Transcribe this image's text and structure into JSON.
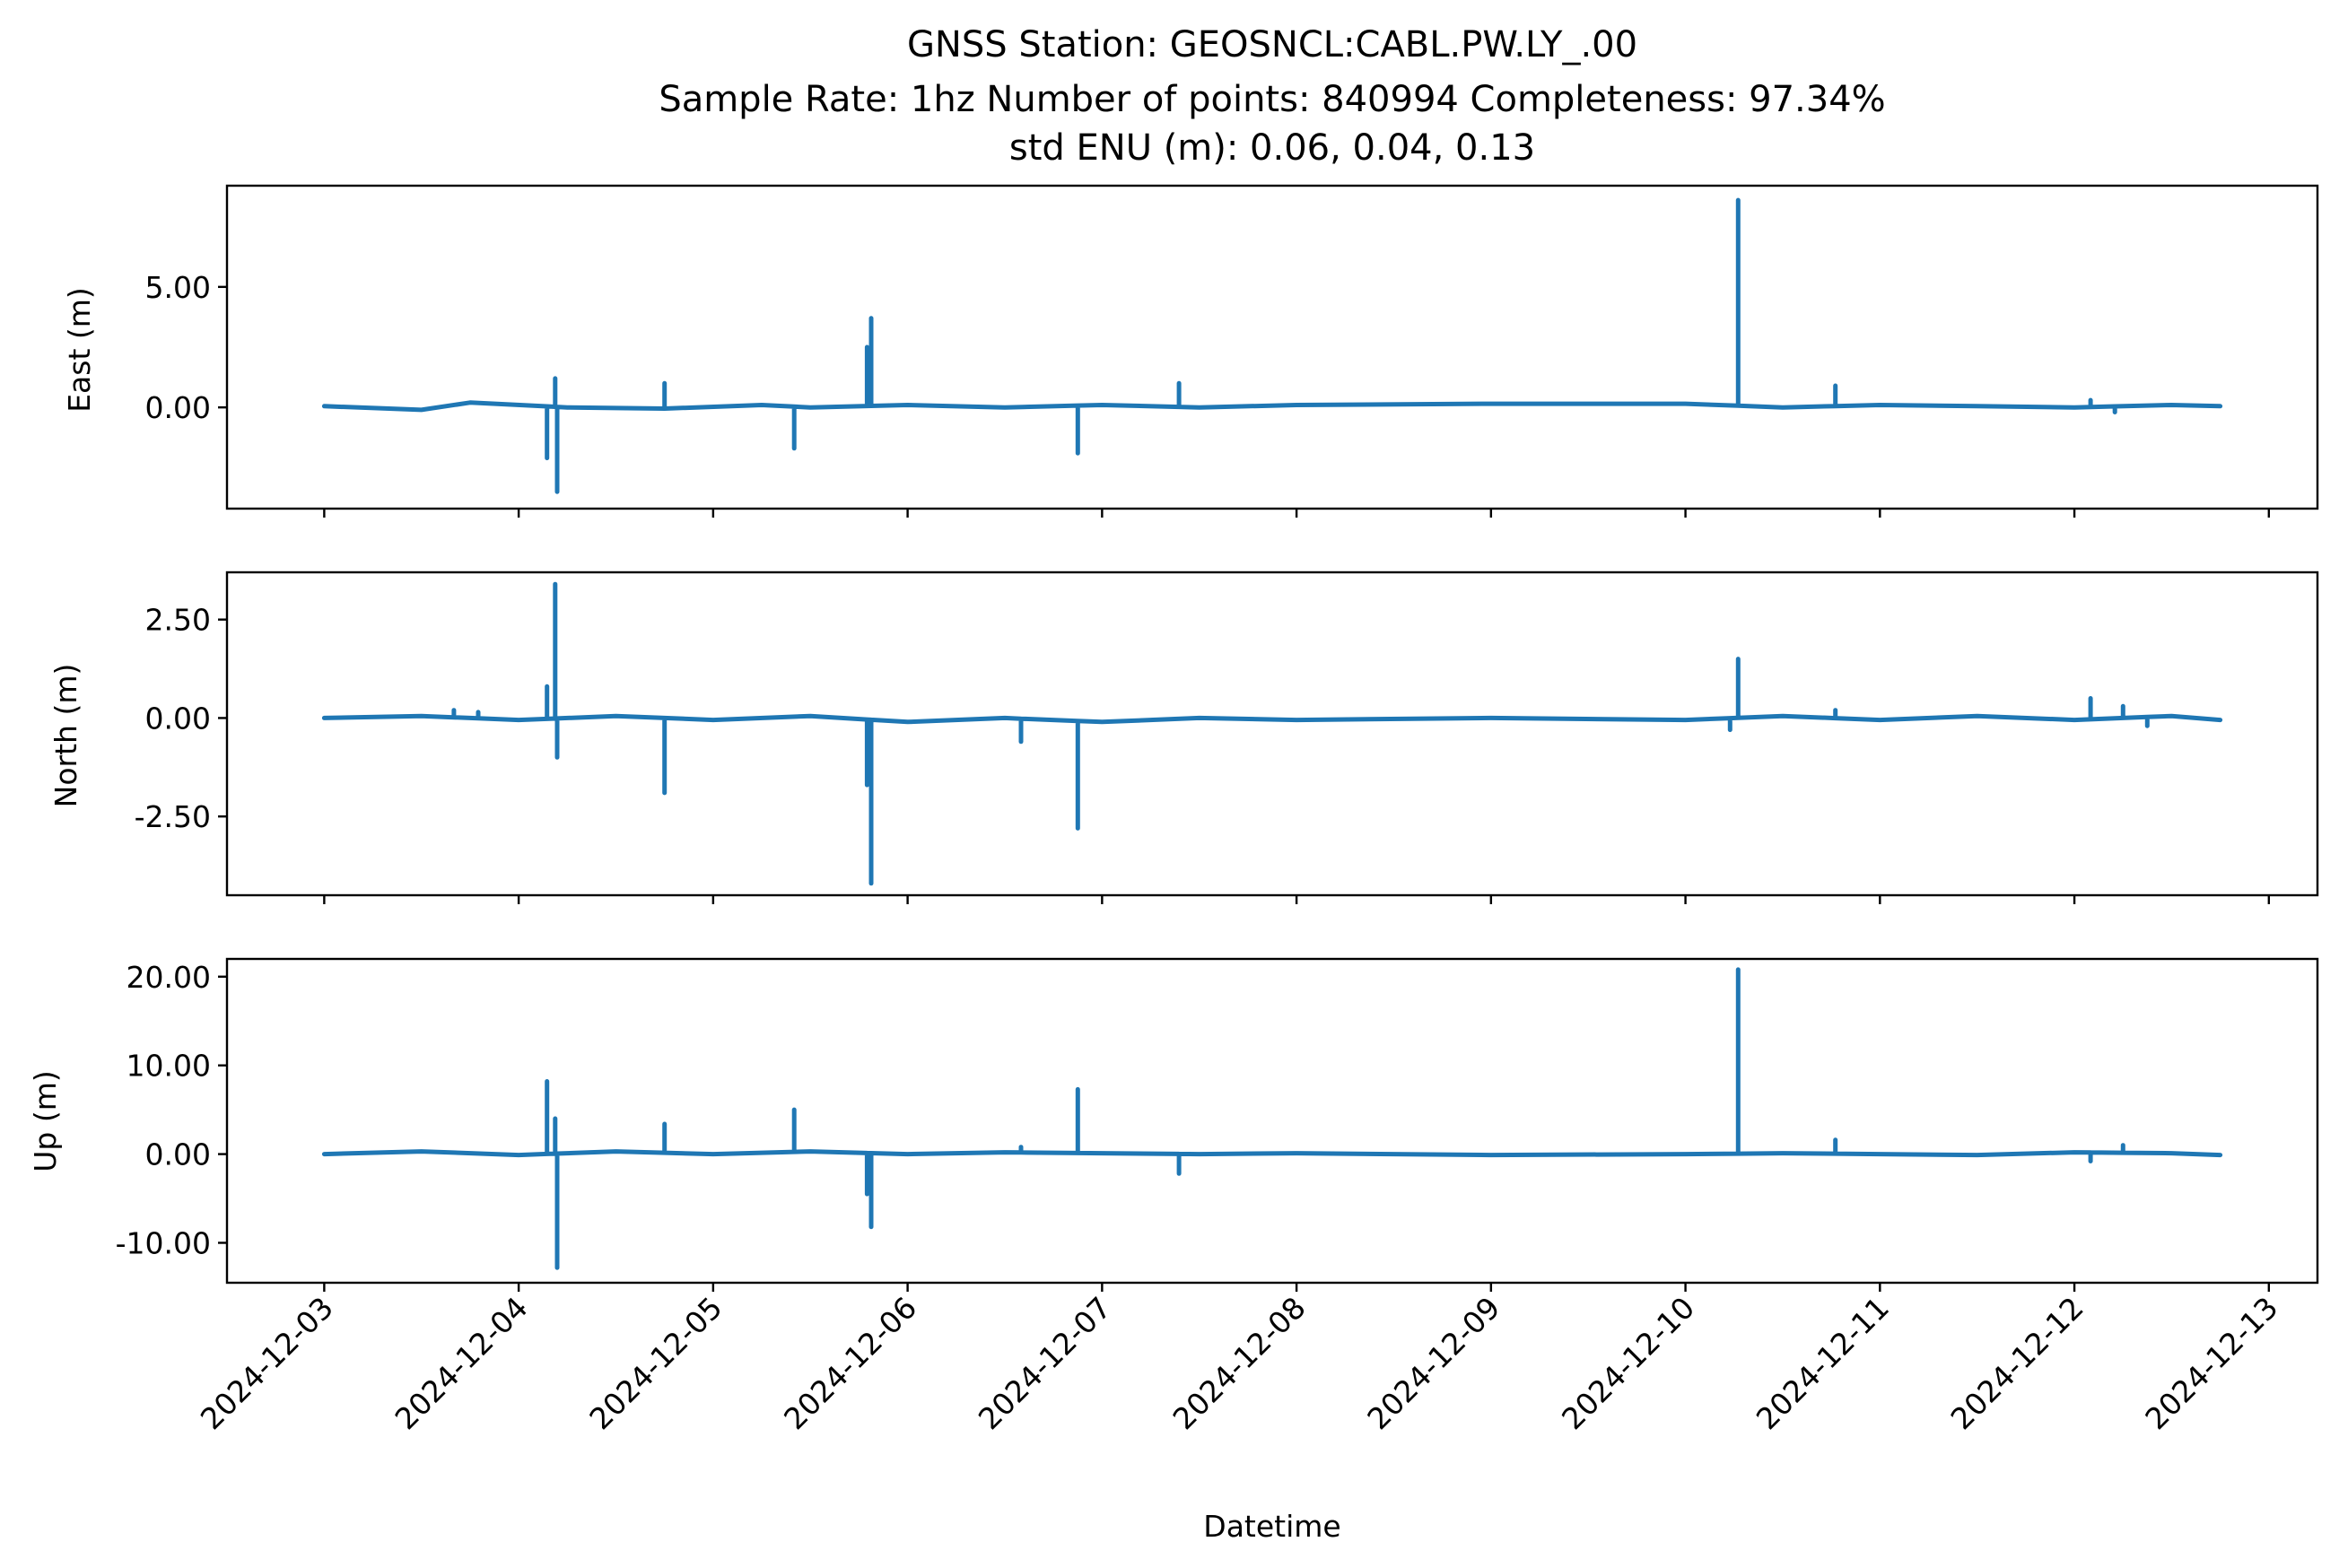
{
  "chart_data": {
    "type": "line",
    "title_lines": [
      "GNSS Station: GEOSNCL:CABL.PW.LY_.00",
      "Sample Rate: 1hz   Number of points: 840994    Completeness:  97.34%",
      "std ENU (m):  0.06, 0.04, 0.13"
    ],
    "xlabel": "Datetime",
    "x_ticks": [
      "2024-12-03",
      "2024-12-04",
      "2024-12-05",
      "2024-12-06",
      "2024-12-07",
      "2024-12-08",
      "2024-12-09",
      "2024-12-10",
      "2024-12-11",
      "2024-12-12",
      "2024-12-13"
    ],
    "xlim": [
      "2024-12-02 12:00",
      "2024-12-13 06:00"
    ],
    "data_range": [
      "2024-12-03 00:00",
      "2024-12-12 18:00"
    ],
    "line_color": "#1f77b4",
    "panels": [
      {
        "ylabel": "East (m)",
        "ylim": [
          -4.2,
          9.2
        ],
        "y_ticks": [
          0,
          5
        ],
        "y_tick_labels": [
          "0.00",
          "5.00"
        ],
        "series": {
          "baseline": [
            [
              "2024-12-03 00:00",
              0.05
            ],
            [
              "2024-12-03 12:00",
              -0.1
            ],
            [
              "2024-12-03 18:00",
              0.2
            ],
            [
              "2024-12-04 06:00",
              0.0
            ],
            [
              "2024-12-04 18:00",
              -0.05
            ],
            [
              "2024-12-05 06:00",
              0.1
            ],
            [
              "2024-12-05 12:00",
              0.0
            ],
            [
              "2024-12-06 00:00",
              0.1
            ],
            [
              "2024-12-06 12:00",
              0.0
            ],
            [
              "2024-12-07 00:00",
              0.1
            ],
            [
              "2024-12-07 12:00",
              0.0
            ],
            [
              "2024-12-08 00:00",
              0.1
            ],
            [
              "2024-12-09 00:00",
              0.15
            ],
            [
              "2024-12-10 00:00",
              0.15
            ],
            [
              "2024-12-10 12:00",
              0.0
            ],
            [
              "2024-12-11 00:00",
              0.1
            ],
            [
              "2024-12-11 12:00",
              0.05
            ],
            [
              "2024-12-12 00:00",
              0.0
            ],
            [
              "2024-12-12 12:00",
              0.1
            ],
            [
              "2024-12-12 18:00",
              0.05
            ]
          ],
          "spikes": [
            [
              "2024-12-04 03:30",
              -2.1
            ],
            [
              "2024-12-04 04:30",
              1.2
            ],
            [
              "2024-12-04 04:45",
              -3.5
            ],
            [
              "2024-12-04 18:00",
              1.0
            ],
            [
              "2024-12-05 10:00",
              -1.7
            ],
            [
              "2024-12-05 19:00",
              2.5
            ],
            [
              "2024-12-05 19:30",
              3.7
            ],
            [
              "2024-12-06 21:00",
              -1.9
            ],
            [
              "2024-12-07 09:30",
              1.0
            ],
            [
              "2024-12-10 06:30",
              8.6
            ],
            [
              "2024-12-10 18:30",
              0.9
            ],
            [
              "2024-12-12 02:00",
              0.3
            ],
            [
              "2024-12-12 05:00",
              -0.2
            ]
          ]
        }
      },
      {
        "ylabel": "North (m)",
        "ylim": [
          -4.5,
          3.7
        ],
        "y_ticks": [
          2.5,
          0,
          -2.5
        ],
        "y_tick_labels": [
          "2.50",
          "0.00",
          "-2.50"
        ],
        "series": {
          "baseline": [
            [
              "2024-12-03 00:00",
              0.0
            ],
            [
              "2024-12-03 12:00",
              0.05
            ],
            [
              "2024-12-04 00:00",
              -0.05
            ],
            [
              "2024-12-04 12:00",
              0.05
            ],
            [
              "2024-12-05 00:00",
              -0.05
            ],
            [
              "2024-12-05 12:00",
              0.05
            ],
            [
              "2024-12-06 00:00",
              -0.1
            ],
            [
              "2024-12-06 12:00",
              0.0
            ],
            [
              "2024-12-07 00:00",
              -0.1
            ],
            [
              "2024-12-07 12:00",
              0.0
            ],
            [
              "2024-12-08 00:00",
              -0.05
            ],
            [
              "2024-12-09 00:00",
              0.0
            ],
            [
              "2024-12-10 00:00",
              -0.05
            ],
            [
              "2024-12-10 12:00",
              0.05
            ],
            [
              "2024-12-11 00:00",
              -0.05
            ],
            [
              "2024-12-11 12:00",
              0.05
            ],
            [
              "2024-12-12 00:00",
              -0.05
            ],
            [
              "2024-12-12 12:00",
              0.05
            ],
            [
              "2024-12-12 18:00",
              -0.05
            ]
          ],
          "spikes": [
            [
              "2024-12-03 16:00",
              0.2
            ],
            [
              "2024-12-03 19:00",
              0.15
            ],
            [
              "2024-12-04 03:30",
              0.8
            ],
            [
              "2024-12-04 04:30",
              3.4
            ],
            [
              "2024-12-04 04:45",
              -1.0
            ],
            [
              "2024-12-04 18:00",
              -1.9
            ],
            [
              "2024-12-05 19:00",
              -1.7
            ],
            [
              "2024-12-05 19:30",
              -4.2
            ],
            [
              "2024-12-06 14:00",
              -0.6
            ],
            [
              "2024-12-06 21:00",
              -2.8
            ],
            [
              "2024-12-10 06:30",
              1.5
            ],
            [
              "2024-12-10 05:30",
              -0.3
            ],
            [
              "2024-12-10 18:30",
              0.2
            ],
            [
              "2024-12-12 02:00",
              0.5
            ],
            [
              "2024-12-12 06:00",
              0.3
            ],
            [
              "2024-12-12 09:00",
              -0.2
            ]
          ]
        }
      },
      {
        "ylabel": "Up (m)",
        "ylim": [
          -14.5,
          22.0
        ],
        "y_ticks": [
          20,
          10,
          0,
          -10
        ],
        "y_tick_labels": [
          "20.00",
          "10.00",
          "0.00",
          "-10.00"
        ],
        "series": {
          "baseline": [
            [
              "2024-12-03 00:00",
              0.0
            ],
            [
              "2024-12-03 12:00",
              0.3
            ],
            [
              "2024-12-04 00:00",
              -0.1
            ],
            [
              "2024-12-04 12:00",
              0.3
            ],
            [
              "2024-12-05 00:00",
              0.0
            ],
            [
              "2024-12-05 12:00",
              0.3
            ],
            [
              "2024-12-06 00:00",
              0.0
            ],
            [
              "2024-12-06 12:00",
              0.2
            ],
            [
              "2024-12-07 00:00",
              0.1
            ],
            [
              "2024-12-07 12:00",
              0.0
            ],
            [
              "2024-12-08 00:00",
              0.1
            ],
            [
              "2024-12-09 00:00",
              -0.1
            ],
            [
              "2024-12-10 00:00",
              0.0
            ],
            [
              "2024-12-10 12:00",
              0.1
            ],
            [
              "2024-12-11 00:00",
              0.0
            ],
            [
              "2024-12-11 12:00",
              -0.1
            ],
            [
              "2024-12-12 00:00",
              0.2
            ],
            [
              "2024-12-12 12:00",
              0.1
            ],
            [
              "2024-12-12 18:00",
              -0.1
            ]
          ],
          "spikes": [
            [
              "2024-12-04 03:30",
              8.2
            ],
            [
              "2024-12-04 04:30",
              4.0
            ],
            [
              "2024-12-04 04:45",
              -12.8
            ],
            [
              "2024-12-04 18:00",
              3.4
            ],
            [
              "2024-12-05 10:00",
              5.0
            ],
            [
              "2024-12-05 19:00",
              -4.5
            ],
            [
              "2024-12-05 19:30",
              -8.2
            ],
            [
              "2024-12-06 14:00",
              0.8
            ],
            [
              "2024-12-06 21:00",
              7.3
            ],
            [
              "2024-12-07 09:30",
              -2.2
            ],
            [
              "2024-12-10 06:30",
              20.8
            ],
            [
              "2024-12-10 18:30",
              1.6
            ],
            [
              "2024-12-12 06:00",
              1.0
            ],
            [
              "2024-12-12 02:00",
              -0.8
            ]
          ]
        }
      }
    ]
  }
}
